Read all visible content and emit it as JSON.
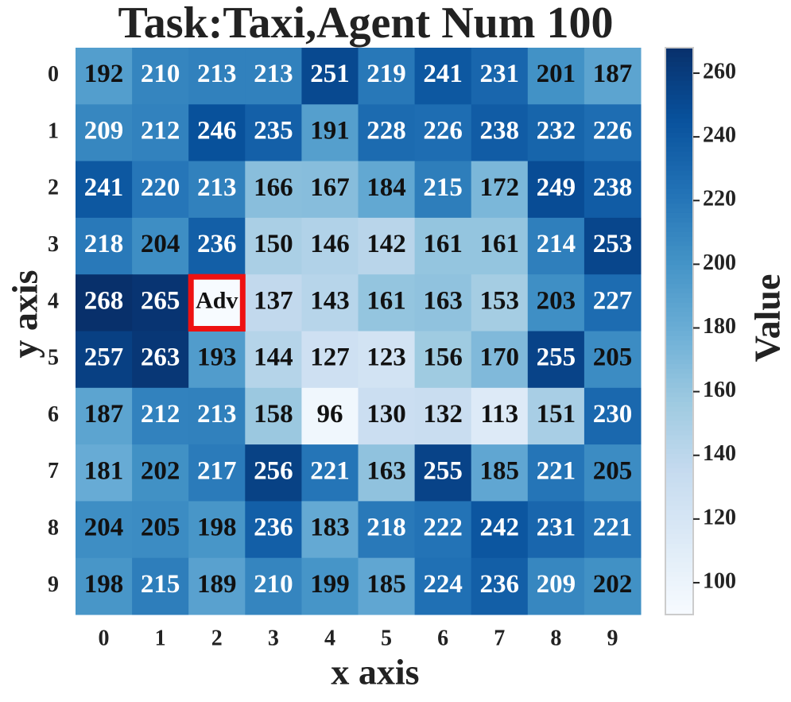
{
  "chart_data": {
    "type": "heatmap",
    "title": "Task:Taxi,Agent Num 100",
    "x_label": "x axis",
    "y_label": "y axis",
    "colorbar_label": "Value",
    "x_categories": [
      "0",
      "1",
      "2",
      "3",
      "4",
      "5",
      "6",
      "7",
      "8",
      "9"
    ],
    "y_categories": [
      "0",
      "1",
      "2",
      "3",
      "4",
      "5",
      "6",
      "7",
      "8",
      "9"
    ],
    "values": [
      [
        192,
        210,
        213,
        213,
        251,
        219,
        241,
        231,
        201,
        187
      ],
      [
        209,
        212,
        246,
        235,
        191,
        228,
        226,
        238,
        232,
        226
      ],
      [
        241,
        220,
        213,
        166,
        167,
        184,
        215,
        172,
        249,
        238
      ],
      [
        218,
        204,
        236,
        150,
        146,
        142,
        161,
        161,
        214,
        253
      ],
      [
        268,
        265,
        null,
        137,
        143,
        161,
        163,
        153,
        203,
        227
      ],
      [
        257,
        263,
        193,
        144,
        127,
        123,
        156,
        170,
        255,
        205
      ],
      [
        187,
        212,
        213,
        158,
        96,
        130,
        132,
        113,
        151,
        230
      ],
      [
        181,
        202,
        217,
        256,
        221,
        163,
        255,
        185,
        221,
        205
      ],
      [
        204,
        205,
        198,
        236,
        183,
        218,
        222,
        242,
        231,
        221
      ],
      [
        198,
        215,
        189,
        210,
        199,
        185,
        224,
        236,
        209,
        202
      ]
    ],
    "marked_cell": {
      "row": 4,
      "col": 2,
      "label": "Adv",
      "border_color": "#ee1111"
    },
    "clim": [
      90,
      268
    ],
    "cticks": [
      100,
      120,
      140,
      160,
      180,
      200,
      220,
      240,
      260
    ],
    "colormap": [
      "#f7fbff",
      "#deebf7",
      "#c6dbef",
      "#9ecae1",
      "#6baed6",
      "#4292c6",
      "#2171b5",
      "#08519c",
      "#08306b"
    ]
  }
}
